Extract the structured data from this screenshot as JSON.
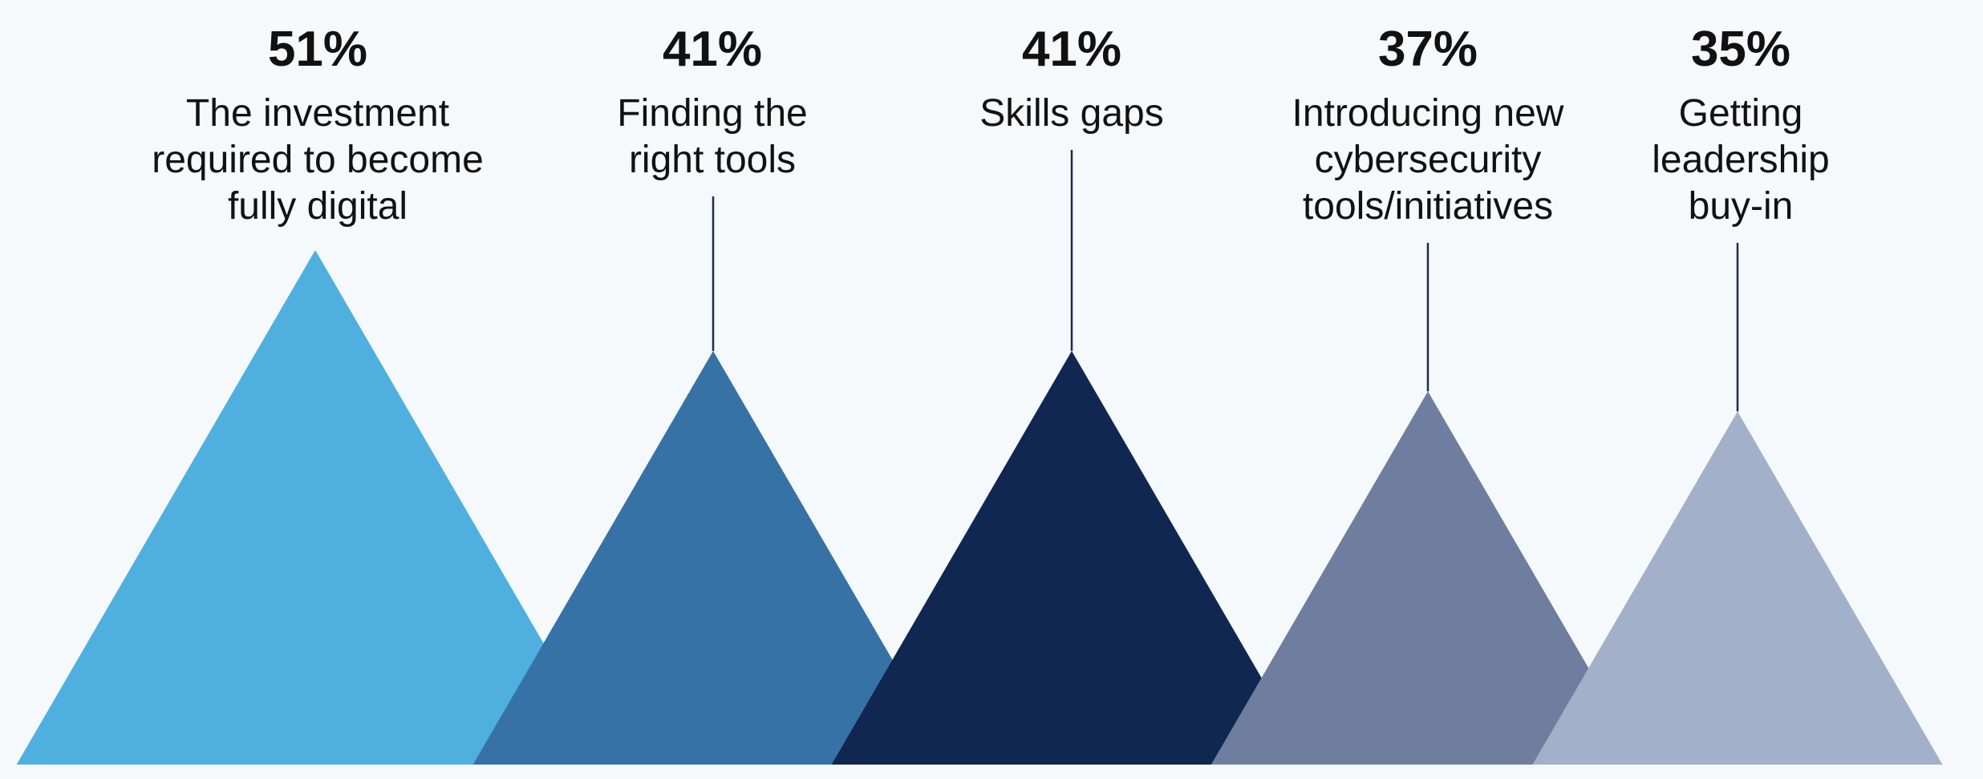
{
  "chart_data": {
    "type": "bar",
    "value_suffix": "%",
    "categories": [
      "The investment required to become fully digital",
      "Finding the right tools",
      "Skills gaps",
      "Introducing new cybersecurity tools/initiatives",
      "Getting leadership buy-in"
    ],
    "values": [
      51,
      41,
      41,
      37,
      35
    ],
    "value_labels": [
      "51%",
      "41%",
      "41%",
      "37%",
      "35%"
    ],
    "label_lines": [
      [
        "The investment",
        "required to become",
        "fully digital"
      ],
      [
        "Finding the",
        "right tools"
      ],
      [
        "Skills gaps"
      ],
      [
        "Introducing new",
        "cybersecurity",
        "tools/initiatives"
      ],
      [
        "Getting",
        "leadership",
        "buy-in"
      ]
    ],
    "colors": [
      "#4fb0df",
      "#3672a6",
      "#102751",
      "#6f7e9e",
      "#a2b0c9"
    ],
    "title": "",
    "xlabel": "",
    "ylabel": "",
    "legend": "none",
    "grid": false
  }
}
